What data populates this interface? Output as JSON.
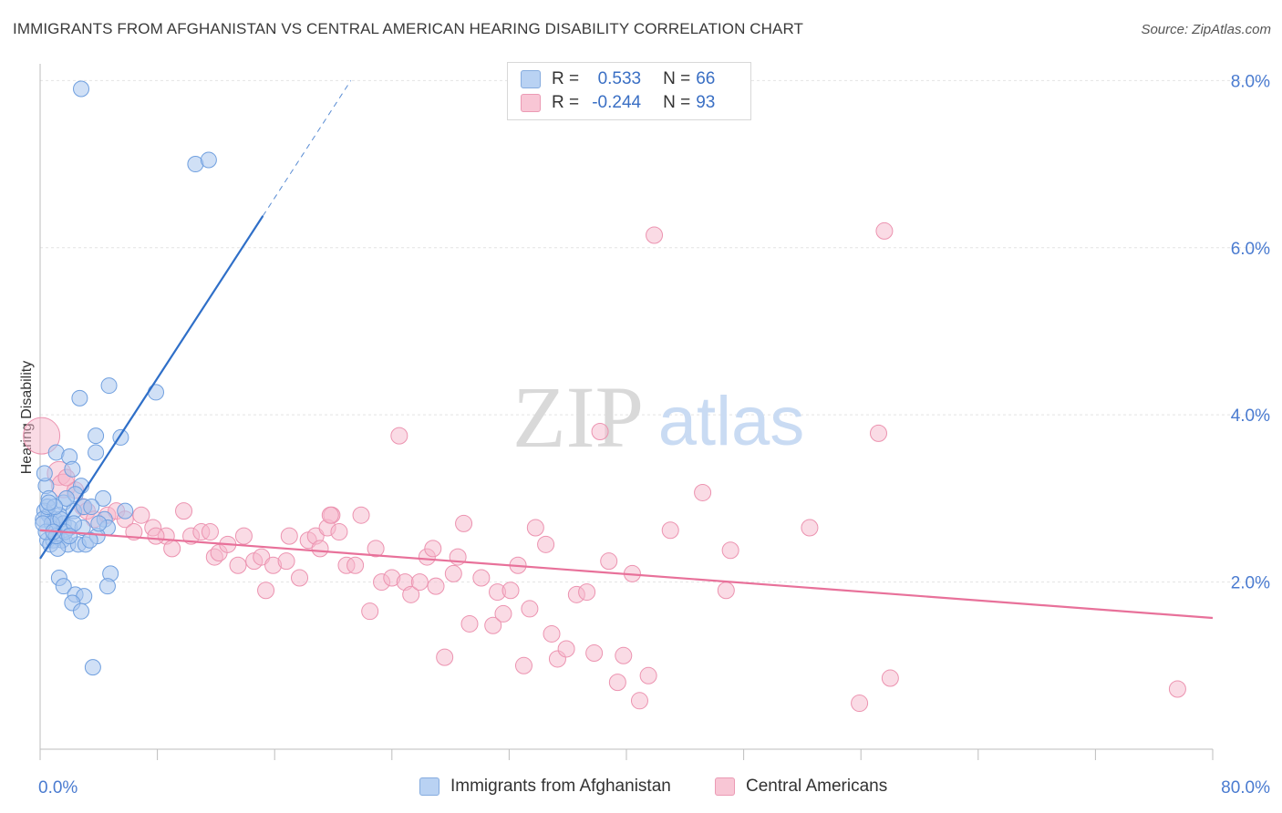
{
  "title": "IMMIGRANTS FROM AFGHANISTAN VS CENTRAL AMERICAN HEARING DISABILITY CORRELATION CHART",
  "source": "Source: ZipAtlas.com",
  "watermark": {
    "zip": "ZIP",
    "atlas": "atlas"
  },
  "legend": {
    "rows": [
      {
        "r_label": "R =",
        "r_value": "0.533",
        "n_label": "N =",
        "n_value": "66"
      },
      {
        "r_label": "R =",
        "r_value": "-0.244",
        "n_label": "N =",
        "n_value": "93"
      }
    ]
  },
  "bottom_legend": {
    "series1": "Immigrants from Afghanistan",
    "series2": "Central Americans"
  },
  "colors": {
    "blue_fill": "#a9c6ef",
    "blue_stroke": "#6f9fdf",
    "blue_line": "#2f6fc8",
    "pink_fill": "#f6b8cb",
    "pink_stroke": "#ec93b0",
    "pink_line": "#e8719a",
    "tick_text": "#4a7bd0",
    "grid": "#e4e4e4"
  },
  "chart_data": {
    "type": "scatter",
    "ylabel": "Hearing Disability",
    "xlim": [
      0,
      80
    ],
    "ylim": [
      0,
      8.2
    ],
    "x_tick_labels": [
      {
        "value": 0,
        "label": "0.0%"
      },
      {
        "value": 80,
        "label": "80.0%"
      }
    ],
    "y_tick_labels": [
      {
        "value": 2,
        "label": "2.0%"
      },
      {
        "value": 4,
        "label": "4.0%"
      },
      {
        "value": 6,
        "label": "6.0%"
      },
      {
        "value": 8,
        "label": "8.0%"
      }
    ],
    "series": [
      {
        "name": "Immigrants from Afghanistan",
        "trend": {
          "x0": 0,
          "y0": 2.28,
          "x1": 15.2,
          "y1": 6.38,
          "dashed_to_x": 21.2,
          "dashed_to_y": 8.0
        },
        "points": [
          [
            2.8,
            7.9
          ],
          [
            10.6,
            7.0
          ],
          [
            11.5,
            7.05
          ],
          [
            4.7,
            4.35
          ],
          [
            2.7,
            4.2
          ],
          [
            7.9,
            4.27
          ],
          [
            3.8,
            3.75
          ],
          [
            5.5,
            3.73
          ],
          [
            1.1,
            3.55
          ],
          [
            2.0,
            3.5
          ],
          [
            3.8,
            3.55
          ],
          [
            0.4,
            3.15
          ],
          [
            2.2,
            3.35
          ],
          [
            2.8,
            3.15
          ],
          [
            0.6,
            3.0
          ],
          [
            1.6,
            2.95
          ],
          [
            2.4,
            3.05
          ],
          [
            4.3,
            3.0
          ],
          [
            0.3,
            2.85
          ],
          [
            0.6,
            2.8
          ],
          [
            1.0,
            2.75
          ],
          [
            1.3,
            2.8
          ],
          [
            1.6,
            2.7
          ],
          [
            2.3,
            2.85
          ],
          [
            3.0,
            2.9
          ],
          [
            4.4,
            2.75
          ],
          [
            5.8,
            2.85
          ],
          [
            0.2,
            2.75
          ],
          [
            0.8,
            2.7
          ],
          [
            1.4,
            2.75
          ],
          [
            2.0,
            2.65
          ],
          [
            2.9,
            2.65
          ],
          [
            4.6,
            2.65
          ],
          [
            0.5,
            2.5
          ],
          [
            0.9,
            2.5
          ],
          [
            1.5,
            2.5
          ],
          [
            1.9,
            2.45
          ],
          [
            2.6,
            2.45
          ],
          [
            3.1,
            2.45
          ],
          [
            3.9,
            2.55
          ],
          [
            0.7,
            2.45
          ],
          [
            1.2,
            2.4
          ],
          [
            0.4,
            2.6
          ],
          [
            0.2,
            2.7
          ],
          [
            1.1,
            2.55
          ],
          [
            1.7,
            2.6
          ],
          [
            3.4,
            2.5
          ],
          [
            0.9,
            2.6
          ],
          [
            2.3,
            2.7
          ],
          [
            1.3,
            2.05
          ],
          [
            1.6,
            1.95
          ],
          [
            4.8,
            2.1
          ],
          [
            4.6,
            1.95
          ],
          [
            2.4,
            1.85
          ],
          [
            3.0,
            1.83
          ],
          [
            2.2,
            1.75
          ],
          [
            2.8,
            1.65
          ],
          [
            3.6,
            0.98
          ],
          [
            0.5,
            2.9
          ],
          [
            1.8,
            3.0
          ],
          [
            0.3,
            3.3
          ],
          [
            3.5,
            2.9
          ],
          [
            2.0,
            2.55
          ],
          [
            1.0,
            2.9
          ],
          [
            4.0,
            2.7
          ],
          [
            0.6,
            2.95
          ]
        ]
      },
      {
        "name": "Central Americans",
        "trend": {
          "x0": 0,
          "y0": 2.62,
          "x1": 80,
          "y1": 1.57
        },
        "points": [
          [
            0.1,
            3.75
          ],
          [
            1.3,
            3.3
          ],
          [
            1.6,
            3.15
          ],
          [
            2.4,
            3.1
          ],
          [
            1.8,
            3.25
          ],
          [
            2.9,
            2.9
          ],
          [
            3.2,
            2.85
          ],
          [
            3.7,
            2.75
          ],
          [
            4.6,
            2.8
          ],
          [
            5.2,
            2.85
          ],
          [
            5.8,
            2.75
          ],
          [
            6.4,
            2.6
          ],
          [
            6.9,
            2.8
          ],
          [
            7.7,
            2.65
          ],
          [
            8.6,
            2.55
          ],
          [
            9.0,
            2.4
          ],
          [
            9.8,
            2.85
          ],
          [
            10.3,
            2.55
          ],
          [
            11.0,
            2.6
          ],
          [
            11.6,
            2.6
          ],
          [
            11.9,
            2.3
          ],
          [
            12.2,
            2.35
          ],
          [
            12.8,
            2.45
          ],
          [
            13.5,
            2.2
          ],
          [
            13.9,
            2.55
          ],
          [
            14.6,
            2.25
          ],
          [
            15.1,
            2.3
          ],
          [
            15.4,
            1.9
          ],
          [
            15.9,
            2.2
          ],
          [
            16.8,
            2.25
          ],
          [
            17.0,
            2.55
          ],
          [
            17.7,
            2.05
          ],
          [
            18.3,
            2.5
          ],
          [
            18.8,
            2.55
          ],
          [
            19.1,
            2.4
          ],
          [
            19.6,
            2.65
          ],
          [
            19.9,
            2.8
          ],
          [
            20.4,
            2.6
          ],
          [
            20.9,
            2.2
          ],
          [
            21.5,
            2.2
          ],
          [
            21.9,
            2.8
          ],
          [
            22.5,
            1.65
          ],
          [
            22.9,
            2.4
          ],
          [
            23.3,
            2.0
          ],
          [
            24.0,
            2.05
          ],
          [
            24.5,
            3.75
          ],
          [
            24.9,
            2.0
          ],
          [
            25.3,
            1.85
          ],
          [
            25.9,
            2.0
          ],
          [
            26.4,
            2.3
          ],
          [
            26.8,
            2.4
          ],
          [
            27.0,
            1.95
          ],
          [
            27.6,
            1.1
          ],
          [
            28.2,
            2.1
          ],
          [
            28.5,
            2.3
          ],
          [
            28.9,
            2.7
          ],
          [
            29.3,
            1.5
          ],
          [
            30.1,
            2.05
          ],
          [
            30.9,
            1.48
          ],
          [
            31.2,
            1.88
          ],
          [
            31.6,
            1.62
          ],
          [
            32.1,
            1.9
          ],
          [
            32.6,
            2.2
          ],
          [
            33.0,
            1.0
          ],
          [
            33.4,
            1.68
          ],
          [
            33.8,
            2.65
          ],
          [
            34.5,
            2.45
          ],
          [
            34.9,
            1.38
          ],
          [
            35.3,
            1.08
          ],
          [
            35.9,
            1.2
          ],
          [
            36.6,
            1.85
          ],
          [
            37.3,
            1.88
          ],
          [
            37.8,
            1.15
          ],
          [
            38.2,
            3.8
          ],
          [
            38.8,
            2.25
          ],
          [
            39.4,
            0.8
          ],
          [
            39.8,
            1.12
          ],
          [
            40.4,
            2.1
          ],
          [
            40.9,
            0.58
          ],
          [
            41.5,
            0.88
          ],
          [
            41.9,
            6.15
          ],
          [
            43.0,
            2.62
          ],
          [
            45.2,
            3.07
          ],
          [
            46.8,
            1.9
          ],
          [
            47.1,
            2.38
          ],
          [
            52.5,
            2.65
          ],
          [
            57.2,
            3.78
          ],
          [
            57.6,
            6.2
          ],
          [
            58.0,
            0.85
          ],
          [
            55.9,
            0.55
          ],
          [
            77.6,
            0.72
          ],
          [
            19.8,
            2.8
          ],
          [
            7.9,
            2.55
          ]
        ]
      }
    ]
  }
}
